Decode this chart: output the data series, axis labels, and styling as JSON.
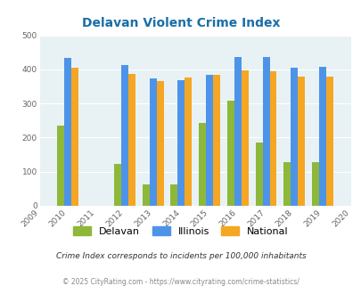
{
  "title": "Delavan Violent Crime Index",
  "title_color": "#1a6fa8",
  "all_years": [
    2009,
    2010,
    2011,
    2012,
    2013,
    2014,
    2015,
    2016,
    2017,
    2018,
    2019,
    2020
  ],
  "data_years": [
    2010,
    2012,
    2013,
    2014,
    2015,
    2016,
    2017,
    2018,
    2019
  ],
  "delavan": [
    235,
    122,
    62,
    62,
    244,
    309,
    186,
    128,
    128
  ],
  "illinois": [
    433,
    414,
    373,
    369,
    383,
    437,
    437,
    405,
    408
  ],
  "national": [
    405,
    387,
    366,
    376,
    383,
    396,
    394,
    380,
    379
  ],
  "delavan_color": "#8db83a",
  "illinois_color": "#4d94e8",
  "national_color": "#f5a623",
  "bg_color": "#e8f2f5",
  "ylim": [
    0,
    500
  ],
  "yticks": [
    0,
    100,
    200,
    300,
    400,
    500
  ],
  "bar_width": 0.25,
  "subtitle": "Crime Index corresponds to incidents per 100,000 inhabitants",
  "footer": "© 2025 CityRating.com - https://www.cityrating.com/crime-statistics/",
  "legend_labels": [
    "Delavan",
    "Illinois",
    "National"
  ]
}
